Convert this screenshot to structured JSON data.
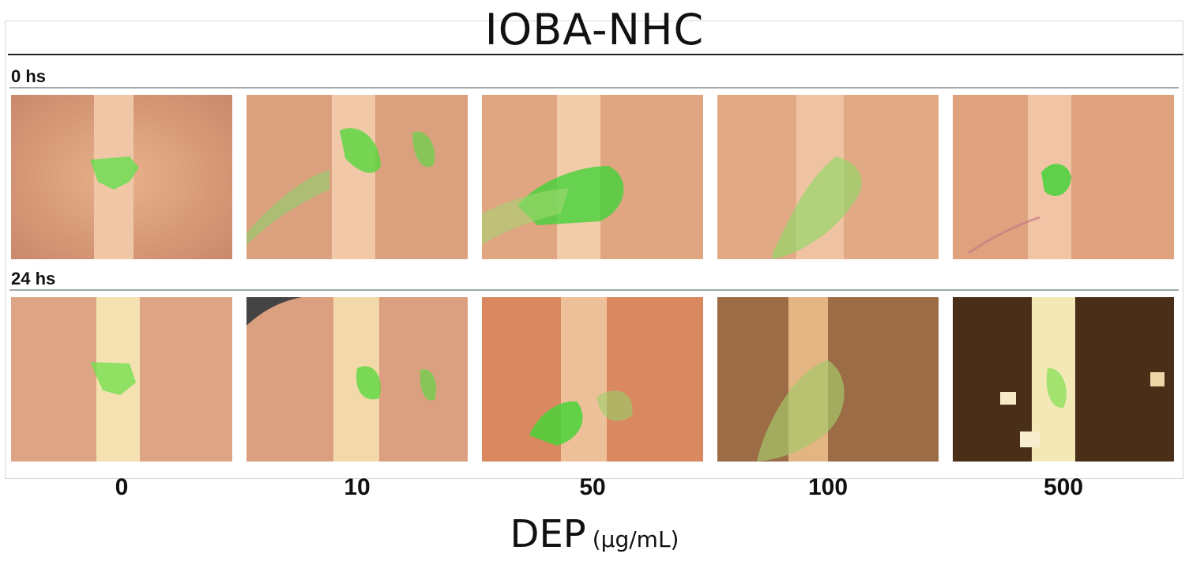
{
  "figure": {
    "title": "IOBA-NHC",
    "rows": [
      {
        "label": "0 hs"
      },
      {
        "label": "24 hs"
      }
    ],
    "columns": [
      {
        "dose": "0"
      },
      {
        "dose": "10"
      },
      {
        "dose": "50"
      },
      {
        "dose": "100"
      },
      {
        "dose": "500"
      }
    ],
    "x_axis": {
      "label": "DEP",
      "unit": "(µg/mL)"
    }
  },
  "colors": {
    "cell_background": "#e3a57e",
    "scratch_gap": "#f2c9a8",
    "fluorescence_green": "#44d23a",
    "dense_cells": "#5a3a1e"
  }
}
